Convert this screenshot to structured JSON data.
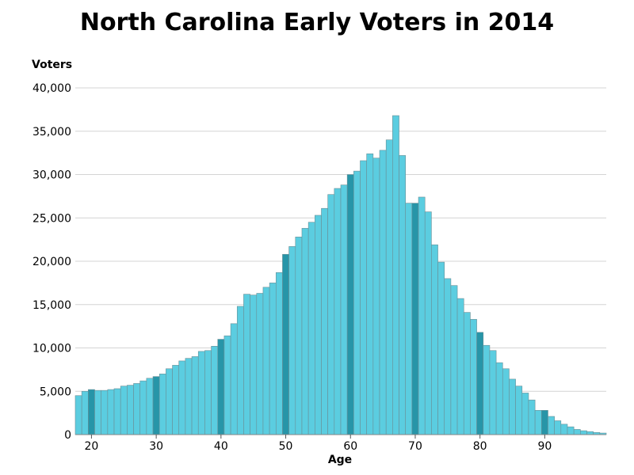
{
  "chart_data": {
    "type": "bar",
    "title": "North Carolina Early Voters in 2014",
    "xlabel": "Age",
    "ylabel": "Voters",
    "x": [
      18,
      19,
      20,
      21,
      22,
      23,
      24,
      25,
      26,
      27,
      28,
      29,
      30,
      31,
      32,
      33,
      34,
      35,
      36,
      37,
      38,
      39,
      40,
      41,
      42,
      43,
      44,
      45,
      46,
      47,
      48,
      49,
      50,
      51,
      52,
      53,
      54,
      55,
      56,
      57,
      58,
      59,
      60,
      61,
      62,
      63,
      64,
      65,
      66,
      67,
      68,
      69,
      70,
      71,
      72,
      73,
      74,
      75,
      76,
      77,
      78,
      79,
      80,
      81,
      82,
      83,
      84,
      85,
      86,
      87,
      88,
      89,
      90,
      91,
      92,
      93,
      94,
      95,
      96,
      97,
      98,
      99
    ],
    "values": [
      4500,
      5000,
      5200,
      5100,
      5100,
      5200,
      5300,
      5600,
      5700,
      5900,
      6200,
      6500,
      6700,
      7000,
      7600,
      8000,
      8500,
      8800,
      9000,
      9600,
      9700,
      10200,
      11000,
      11400,
      12800,
      14800,
      16200,
      16100,
      16300,
      17000,
      17500,
      18700,
      20800,
      21700,
      22800,
      23800,
      24500,
      25300,
      26100,
      27700,
      28400,
      28800,
      30000,
      30400,
      31600,
      32400,
      31900,
      32800,
      34000,
      36800,
      32200,
      26700,
      26700,
      27400,
      25700,
      21900,
      19900,
      18000,
      17200,
      15700,
      14100,
      13300,
      11800,
      10300,
      9700,
      8300,
      7600,
      6400,
      5600,
      4800,
      4000,
      2800,
      2800,
      2100,
      1600,
      1200,
      900,
      600,
      450,
      350,
      250,
      180
    ],
    "highlight_x": [
      20,
      30,
      40,
      50,
      60,
      70,
      80,
      90
    ],
    "colors": {
      "bar": "#5BCDE0",
      "highlight": "#2795A8",
      "edge": "#6a8f96",
      "grid": "#d4d4d4"
    },
    "xlim": [
      17.5,
      99.5
    ],
    "ylim": [
      0,
      40000
    ],
    "x_ticks": [
      20,
      30,
      40,
      50,
      60,
      70,
      80,
      90
    ],
    "y_ticks": [
      0,
      5000,
      10000,
      15000,
      20000,
      25000,
      30000,
      35000,
      40000
    ],
    "y_tick_labels": [
      "0",
      "5,000",
      "10,000",
      "15,000",
      "20,000",
      "25,000",
      "30,000",
      "35,000",
      "40,000"
    ],
    "grid": true
  }
}
